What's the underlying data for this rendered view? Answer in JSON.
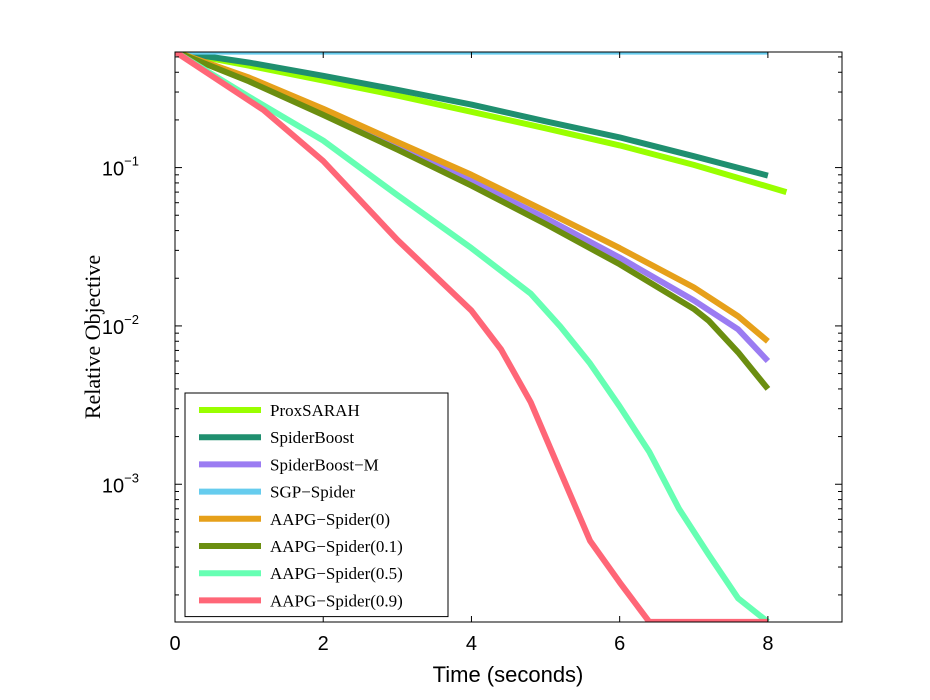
{
  "chart_data": {
    "type": "line",
    "title": "",
    "xlabel": "Time (seconds)",
    "ylabel": "Relative Objective",
    "xlim": [
      0,
      9
    ],
    "ylim_log10": [
      -3.87,
      -0.27
    ],
    "yscale": "log",
    "grid": false,
    "legend_position": "bottom-left",
    "x_ticks": [
      {
        "value": 0,
        "label": "0"
      },
      {
        "value": 2,
        "label": "2"
      },
      {
        "value": 4,
        "label": "4"
      },
      {
        "value": 6,
        "label": "6"
      },
      {
        "value": 8,
        "label": "8"
      }
    ],
    "y_ticks": [
      {
        "exp": -1,
        "base": "10",
        "sup": "−1"
      },
      {
        "exp": -2,
        "base": "10",
        "sup": "−2"
      },
      {
        "exp": -3,
        "base": "10",
        "sup": "−3"
      }
    ],
    "series": [
      {
        "name": "ProxSARAH",
        "color": "#99ff00",
        "x": [
          0,
          1,
          2,
          3,
          4,
          5,
          6,
          7,
          8.25
        ],
        "y": [
          0.54,
          0.44,
          0.355,
          0.285,
          0.225,
          0.177,
          0.138,
          0.104,
          0.07
        ]
      },
      {
        "name": "SpiderBoost",
        "color": "#1f8f6f",
        "x": [
          0,
          1,
          2,
          3,
          4,
          5,
          6,
          7,
          8
        ],
        "y": [
          0.54,
          0.46,
          0.38,
          0.31,
          0.25,
          0.196,
          0.155,
          0.118,
          0.089
        ]
      },
      {
        "name": "SpiderBoost−M",
        "color": "#9b7cf2",
        "x": [
          0,
          1,
          2,
          3,
          4,
          5,
          6,
          7,
          7.6,
          8
        ],
        "y": [
          0.54,
          0.36,
          0.22,
          0.135,
          0.082,
          0.048,
          0.027,
          0.0145,
          0.0095,
          0.006
        ]
      },
      {
        "name": "SGP−Spider",
        "color": "#66ccee",
        "x": [
          0,
          8
        ],
        "y": [
          0.54,
          0.54
        ]
      },
      {
        "name": "AAPG−Spider(0)",
        "color": "#e6a01a",
        "x": [
          0,
          1,
          2,
          3,
          4,
          5,
          6,
          7,
          7.6,
          8
        ],
        "y": [
          0.54,
          0.37,
          0.235,
          0.145,
          0.09,
          0.053,
          0.031,
          0.0175,
          0.0115,
          0.008
        ]
      },
      {
        "name": "AAPG−Spider(0.1)",
        "color": "#6b8e10",
        "x": [
          0,
          1,
          2,
          3,
          4,
          5,
          6,
          7,
          7.2,
          7.6,
          8
        ],
        "y": [
          0.54,
          0.35,
          0.215,
          0.13,
          0.077,
          0.044,
          0.0245,
          0.0128,
          0.0108,
          0.0068,
          0.004
        ]
      },
      {
        "name": "AAPG−Spider(0.5)",
        "color": "#66ffb3",
        "x": [
          0,
          1,
          2,
          3,
          4,
          4.8,
          5.2,
          5.6,
          6,
          6.4,
          6.8,
          7.2,
          7.6,
          8
        ],
        "y": [
          0.54,
          0.28,
          0.148,
          0.067,
          0.031,
          0.016,
          0.0099,
          0.0058,
          0.0031,
          0.0016,
          0.0007,
          0.00036,
          0.00019,
          0.000135
        ]
      },
      {
        "name": "AAPG−Spider(0.9)",
        "color": "#ff6677",
        "x": [
          0,
          1.2,
          2,
          3,
          4,
          4.4,
          4.8,
          5.2,
          5.6,
          6,
          6.4,
          8
        ],
        "y": [
          0.54,
          0.23,
          0.11,
          0.035,
          0.0125,
          0.0071,
          0.0033,
          0.0012,
          0.00044,
          0.00024,
          0.000135,
          0.000135
        ]
      }
    ]
  }
}
